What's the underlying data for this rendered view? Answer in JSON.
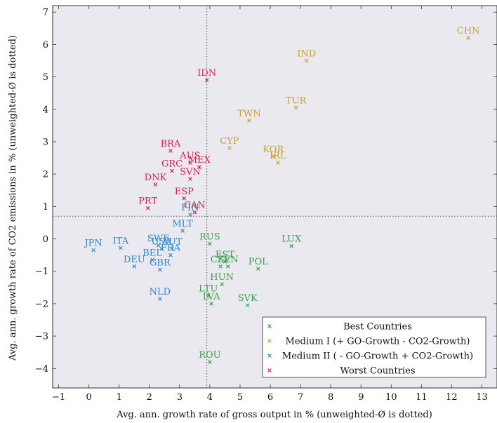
{
  "chart_data": {
    "type": "scatter",
    "title": "",
    "xlabel": "Avg. ann. growth rate of gross output in % (unweighted-Ø is dotted)",
    "ylabel": "Avg. ann. growth rate of CO2 emissions in % (unweighted-Ø is dotted)",
    "xlim": [
      -1.2,
      13.5
    ],
    "ylim": [
      -4.6,
      7.2
    ],
    "xticks": [
      -1,
      0,
      1,
      2,
      3,
      4,
      5,
      6,
      7,
      8,
      9,
      10,
      11,
      12,
      13
    ],
    "yticks": [
      -4,
      -3,
      -2,
      -1,
      0,
      1,
      2,
      3,
      4,
      5,
      6,
      7
    ],
    "xtick_labels": [
      "−1",
      "0",
      "1",
      "2",
      "3",
      "4",
      "5",
      "6",
      "7",
      "8",
      "9",
      "10",
      "11",
      "12",
      "13"
    ],
    "ytick_labels": [
      "−4",
      "−3",
      "−2",
      "−1",
      "0",
      "1",
      "2",
      "3",
      "4",
      "5",
      "6",
      "7"
    ],
    "mean_x": 3.9,
    "mean_y": 0.7,
    "background": "#e9e9ef",
    "legend_position": "bottom-right",
    "series": [
      {
        "name": "Best Countries",
        "color": "#3aa04a",
        "points": [
          {
            "label": "RUS",
            "x": 4.0,
            "y": -0.15
          },
          {
            "label": "LUX",
            "x": 6.7,
            "y": -0.22
          },
          {
            "label": "EST",
            "x": 4.5,
            "y": -0.7
          },
          {
            "label": "CZE",
            "x": 4.35,
            "y": -0.85
          },
          {
            "label": "SVN",
            "x": 4.6,
            "y": -0.85
          },
          {
            "label": "POL",
            "x": 5.6,
            "y": -0.92
          },
          {
            "label": "HUN",
            "x": 4.4,
            "y": -1.4
          },
          {
            "label": "LTU",
            "x": 3.95,
            "y": -1.75
          },
          {
            "label": "LVA",
            "x": 4.05,
            "y": -2.0
          },
          {
            "label": "SVK",
            "x": 5.25,
            "y": -2.05
          },
          {
            "label": "ROU",
            "x": 4.0,
            "y": -3.8
          }
        ]
      },
      {
        "name": "Medium I (+ GO-Growth - CO2-Growth)",
        "color": "#c9a227",
        "points": [
          {
            "label": "CHN",
            "x": 12.55,
            "y": 6.2
          },
          {
            "label": "IND",
            "x": 7.2,
            "y": 5.5
          },
          {
            "label": "TUR",
            "x": 6.85,
            "y": 4.05
          },
          {
            "label": "TWN",
            "x": 5.3,
            "y": 3.65
          },
          {
            "label": "CYP",
            "x": 4.65,
            "y": 2.8
          },
          {
            "label": "KOR",
            "x": 6.1,
            "y": 2.55
          },
          {
            "label": "IRL",
            "x": 6.25,
            "y": 2.35
          }
        ]
      },
      {
        "name": "Medium II ( - GO-Growth + CO2-Growth)",
        "color": "#2e8ac8",
        "points": [
          {
            "label": "FIN",
            "x": 3.35,
            "y": 0.75
          },
          {
            "label": "MLT",
            "x": 3.1,
            "y": 0.25
          },
          {
            "label": "JPN",
            "x": 0.15,
            "y": -0.35
          },
          {
            "label": "ITA",
            "x": 1.05,
            "y": -0.28
          },
          {
            "label": "SWE",
            "x": 2.3,
            "y": -0.2
          },
          {
            "label": "USA",
            "x": 2.4,
            "y": -0.3
          },
          {
            "label": "AUT",
            "x": 2.75,
            "y": -0.3
          },
          {
            "label": "FRA",
            "x": 2.7,
            "y": -0.5
          },
          {
            "label": "BEL",
            "x": 2.1,
            "y": -0.65
          },
          {
            "label": "DEU",
            "x": 1.5,
            "y": -0.85
          },
          {
            "label": "GBR",
            "x": 2.35,
            "y": -0.95
          },
          {
            "label": "NLD",
            "x": 2.35,
            "y": -1.85
          }
        ]
      },
      {
        "name": "Worst Countries",
        "color": "#d8204e",
        "points": [
          {
            "label": "IDN",
            "x": 3.9,
            "y": 4.9
          },
          {
            "label": "BRA",
            "x": 2.7,
            "y": 2.72
          },
          {
            "label": "AUS",
            "x": 3.35,
            "y": 2.35
          },
          {
            "label": "MEX",
            "x": 3.65,
            "y": 2.22
          },
          {
            "label": "GRC",
            "x": 2.75,
            "y": 2.1
          },
          {
            "label": "SVN",
            "x": 3.35,
            "y": 1.85
          },
          {
            "label": "DNK",
            "x": 2.2,
            "y": 1.68
          },
          {
            "label": "ESP",
            "x": 3.15,
            "y": 1.25
          },
          {
            "label": "PRT",
            "x": 1.95,
            "y": 0.95
          },
          {
            "label": "CAN",
            "x": 3.5,
            "y": 0.82
          }
        ]
      }
    ]
  }
}
